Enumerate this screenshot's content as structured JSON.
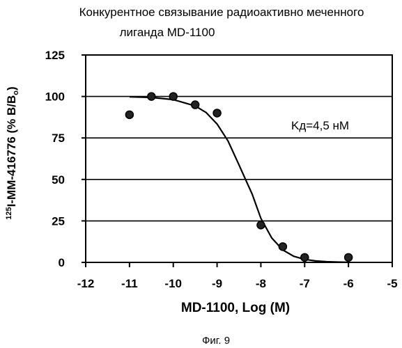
{
  "figure": {
    "title_line1": "Конкурентное связывание радиоактивно меченного",
    "title_line2": "лиганда MD-1100",
    "caption": "Фиг. 9",
    "annotation": "Kд=4,5 нМ"
  },
  "chart_data": {
    "type": "scatter",
    "title": "Конкурентное связывание радиоактивно меченного лиганда MD-1100",
    "xlabel": "MD-1100, Log (M)",
    "ylabel": "125I-MM-416776 (% B/B0)",
    "ylabel_parts": {
      "sup": "125",
      "main": "I-MM-416776 (% B/B",
      "sub": "o",
      "end": ")"
    },
    "xlim": [
      -12,
      -5
    ],
    "ylim": [
      0,
      125
    ],
    "xticks": [
      -12,
      -11,
      -10,
      -9,
      -8,
      -7,
      -6,
      -5
    ],
    "xtick_labels": [
      "-12",
      "-11",
      "-10",
      "-9",
      "-8",
      "-7",
      "-6",
      "-5"
    ],
    "yticks": [
      0,
      25,
      50,
      75,
      100,
      125
    ],
    "ytick_labels": [
      "0",
      "25",
      "50",
      "75",
      "100",
      "125"
    ],
    "grid": "horizontal",
    "series": [
      {
        "type": "scatter",
        "x": [
          -11,
          -10.5,
          -10,
          -9.5,
          -9,
          -8,
          -7.5,
          -7,
          -6
        ],
        "y": [
          89,
          100,
          100,
          95,
          90,
          22.5,
          9.5,
          3,
          3
        ]
      },
      {
        "type": "line",
        "x": [
          -11,
          -10.5,
          -10,
          -9.5,
          -9.25,
          -9,
          -8.75,
          -8.5,
          -8.35,
          -8.2,
          -8,
          -7.75,
          -7.5,
          -7.25,
          -7,
          -6.75,
          -6.5,
          -6.25,
          -6
        ],
        "y": [
          99.8,
          99.4,
          98.1,
          94.3,
          90.3,
          83.4,
          73.2,
          58.8,
          50,
          41.2,
          26.6,
          14.7,
          7.5,
          3.7,
          1.8,
          0.9,
          0.4,
          0.2,
          0.1
        ]
      }
    ],
    "annotation": {
      "text": "Kд=4,5 нМ",
      "x": -7.7,
      "y": 79
    }
  }
}
